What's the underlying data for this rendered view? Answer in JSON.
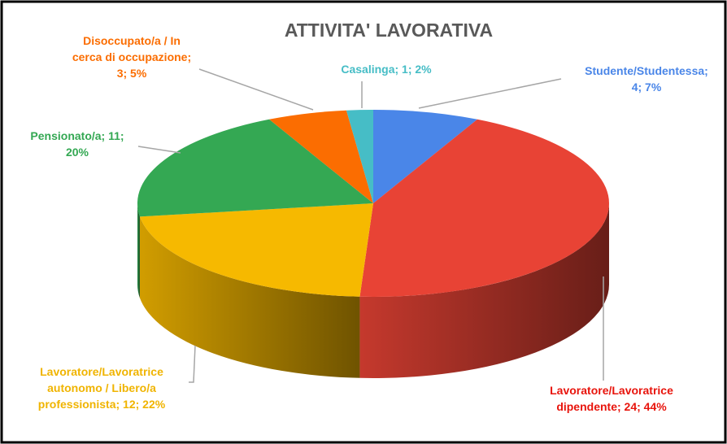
{
  "chart_data": {
    "type": "pie3d",
    "title": "ATTIVITA' LAVORATIVA",
    "values": [
      4,
      24,
      12,
      11,
      3,
      1
    ],
    "value_labels": [
      [
        "Studente/Studentessa;",
        "4; 7%"
      ],
      [
        "Lavoratore/Lavoratrice",
        "dipendente; 24; 44%"
      ],
      [
        "Lavoratore/Lavoratrice",
        "autonomo / Libero/a",
        "professionista; 12; 22%"
      ],
      [
        "Pensionato/a; 11;",
        "20%"
      ],
      [
        "Disoccupato/a / In",
        "cerca di occupazione;",
        "3; 5%"
      ],
      [
        "Casalinga; 1; 2%"
      ]
    ],
    "colors": [
      "#4a86e8",
      "#e84335",
      "#f6b900",
      "#34a853",
      "#fb6d01",
      "#46bdc6"
    ],
    "label_colors": [
      "#4a86e8",
      "#e8140c",
      "#f0b400",
      "#34a853",
      "#fb6d01",
      "#46bdc6"
    ]
  }
}
